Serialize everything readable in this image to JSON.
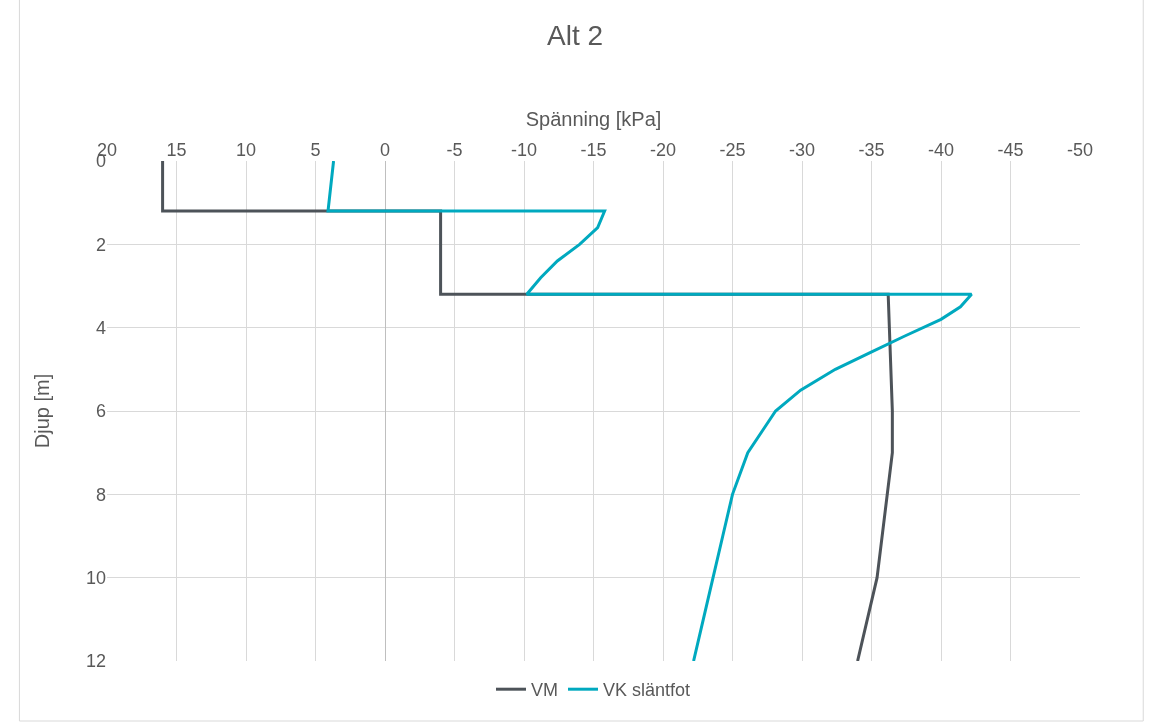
{
  "chart_data": {
    "type": "line",
    "title": "Alt 2",
    "xlabel": "Spänning [kPa]",
    "ylabel": "Djup [m]",
    "xlim": [
      20,
      -50
    ],
    "xticks": [
      20,
      15,
      10,
      5,
      0,
      -5,
      -10,
      -15,
      -20,
      -25,
      -30,
      -35,
      -40,
      -45,
      -50
    ],
    "ylim": [
      12,
      0
    ],
    "yticks": [
      0,
      2,
      4,
      6,
      8,
      10,
      12
    ],
    "grid": true,
    "legend": "bottom",
    "series": [
      {
        "name": "VM",
        "color": "#4d5359",
        "x": [
          16,
          16,
          -4,
          -4,
          -36.2,
          -36.5,
          -36.5,
          -35.4,
          -34
        ],
        "values": [
          0,
          1.2,
          1.2,
          3.2,
          3.2,
          6,
          7,
          10,
          12
        ]
      },
      {
        "name": "VK släntfot",
        "color": "#00a9bf",
        "x": [
          3.7,
          4.1,
          -15.8,
          -15.3,
          -14,
          -12.4,
          -11.2,
          -10.2,
          -42.2,
          -41.4,
          -40,
          -37.4,
          -34.9,
          -32.4,
          -29.9,
          -28.1,
          -26.1,
          -25,
          -24.3,
          -23.6,
          -22.9,
          -22.2
        ],
        "values": [
          0,
          1.2,
          1.2,
          1.6,
          2,
          2.4,
          2.8,
          3.2,
          3.2,
          3.5,
          3.8,
          4.2,
          4.6,
          5,
          5.5,
          6,
          7,
          8,
          9,
          10,
          11,
          12
        ]
      }
    ]
  }
}
